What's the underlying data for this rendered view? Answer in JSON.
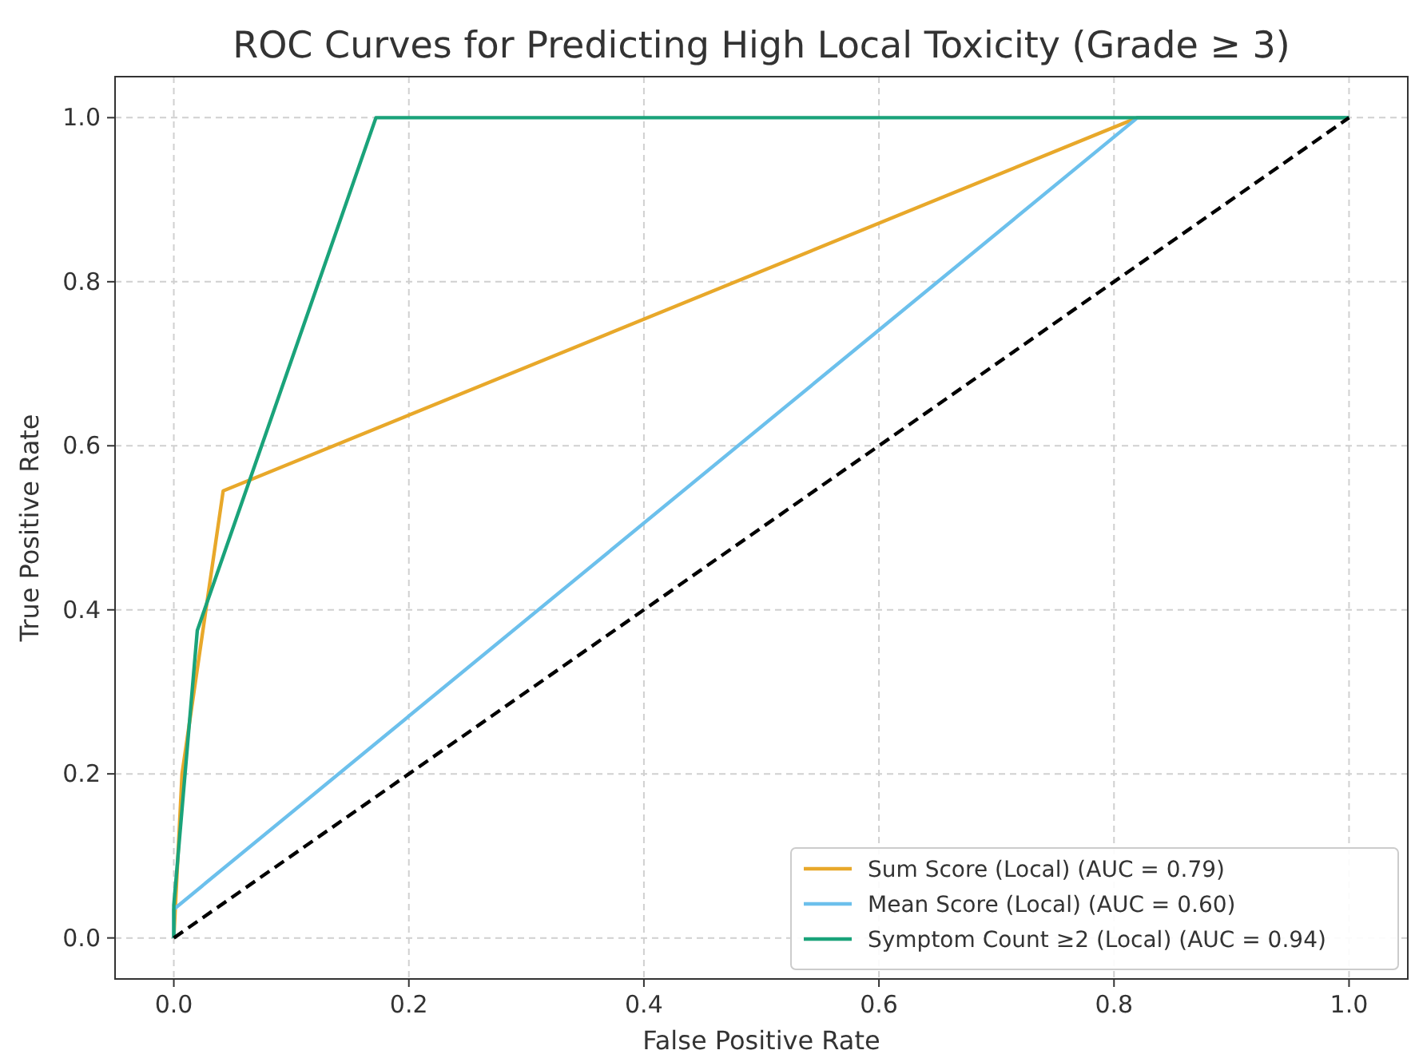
{
  "chart_data": {
    "type": "line",
    "title": "ROC Curves for Predicting High Local Toxicity (Grade ≥ 3)",
    "xlabel": "False Positive Rate",
    "ylabel": "True Positive Rate",
    "xlim": [
      -0.05,
      1.05
    ],
    "ylim": [
      -0.05,
      1.05
    ],
    "xticks": [
      {
        "value": 0,
        "label": "0.0"
      },
      {
        "value": 0.2,
        "label": "0.2"
      },
      {
        "value": 0.4,
        "label": "0.4"
      },
      {
        "value": 0.6,
        "label": "0.6"
      },
      {
        "value": 0.8,
        "label": "0.8"
      },
      {
        "value": 1,
        "label": "1.0"
      }
    ],
    "yticks": [
      {
        "value": 0,
        "label": "0.0"
      },
      {
        "value": 0.2,
        "label": "0.2"
      },
      {
        "value": 0.4,
        "label": "0.4"
      },
      {
        "value": 0.6,
        "label": "0.6"
      },
      {
        "value": 0.8,
        "label": "0.8"
      },
      {
        "value": 1,
        "label": "1.0"
      }
    ],
    "grid": true,
    "legend": "bottom right",
    "marker": "none",
    "series": [
      {
        "name": "Sum Score (Local) (AUC = 0.79)",
        "color": "#e8a82a",
        "x": [
          0,
          0.007,
          0.042,
          0.82,
          1
        ],
        "values": [
          0,
          0.2,
          0.545,
          1,
          1
        ]
      },
      {
        "name": "Mean Score (Local) (AUC = 0.60)",
        "color": "#6cc0ec",
        "x": [
          0,
          0,
          0.82,
          1
        ],
        "values": [
          0,
          0.035,
          1,
          1
        ]
      },
      {
        "name": "Symptom Count ≥2 (Local) (AUC = 0.94)",
        "color": "#1aa37a",
        "x": [
          0,
          0,
          0.02,
          0.172,
          1
        ],
        "values": [
          0,
          0.04,
          0.375,
          1,
          1
        ]
      },
      {
        "color": "#000000",
        "line_style": "dashed",
        "x": [
          0,
          1
        ],
        "values": [
          0,
          1
        ]
      }
    ]
  }
}
